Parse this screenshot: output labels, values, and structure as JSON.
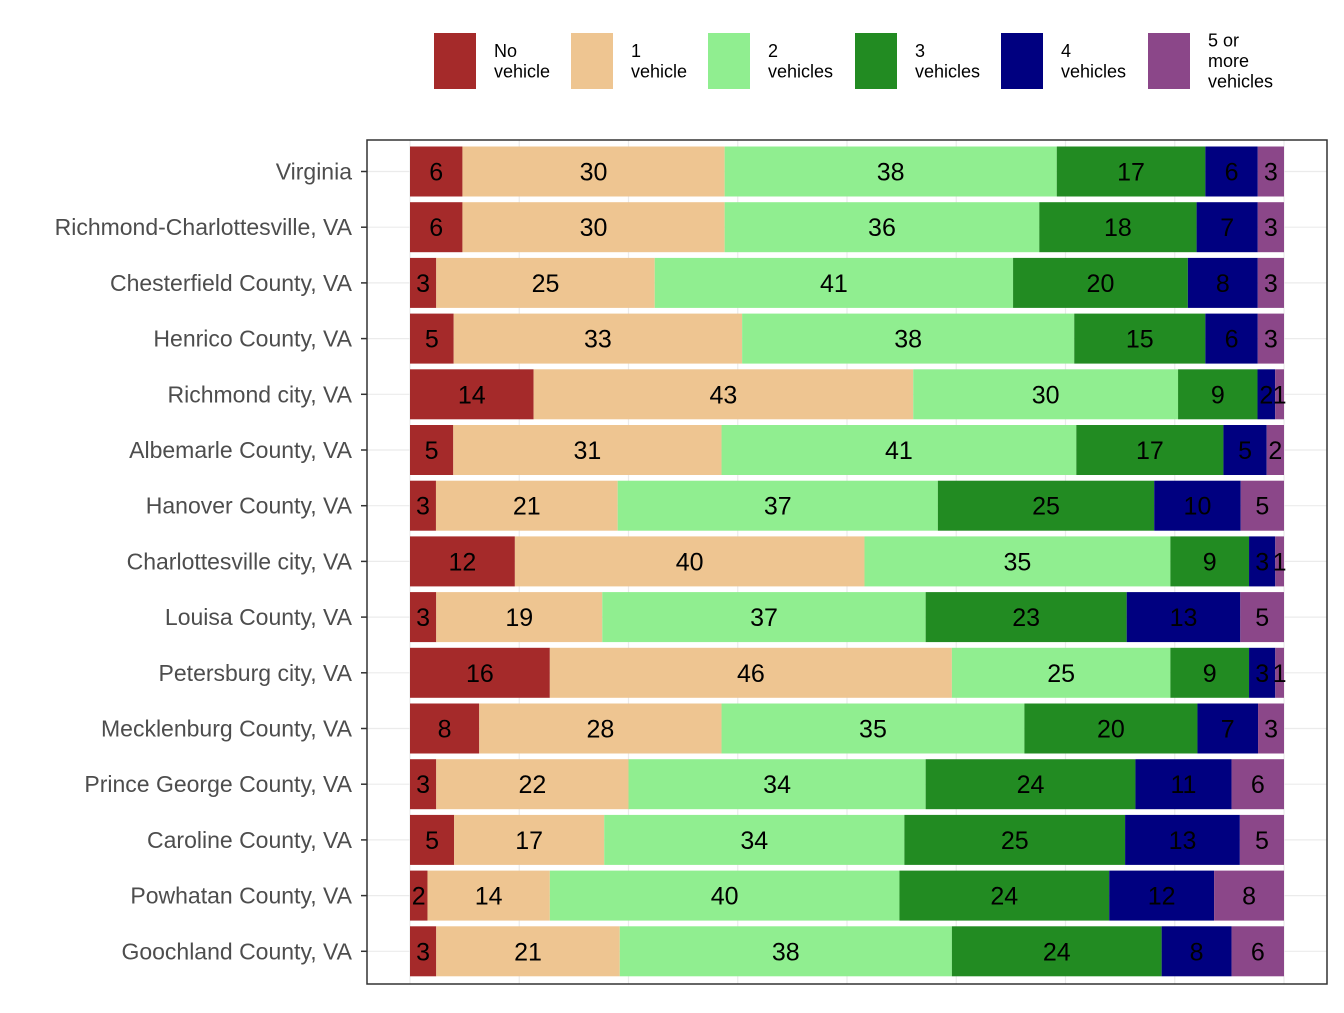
{
  "chart_data": {
    "type": "bar",
    "orientation": "horizontal",
    "stacked": true,
    "title": "",
    "xlabel": "",
    "ylabel": "",
    "legend_position": "top",
    "categories": [
      "Virginia",
      "Richmond-Charlottesville, VA",
      "Chesterfield County, VA",
      "Henrico County, VA",
      "Richmond city, VA",
      "Albemarle County, VA",
      "Hanover County, VA",
      "Charlottesville city, VA",
      "Louisa County, VA",
      "Petersburg city, VA",
      "Mecklenburg County, VA",
      "Prince George County, VA",
      "Caroline County, VA",
      "Powhatan County, VA",
      "Goochland County, VA"
    ],
    "series": [
      {
        "name": "No vehicle",
        "legend_lines": [
          "No",
          "vehicle"
        ],
        "color": "#A52A2A",
        "values": [
          6,
          6,
          3,
          5,
          14,
          5,
          3,
          12,
          3,
          16,
          8,
          3,
          5,
          2,
          3
        ]
      },
      {
        "name": "1 vehicle",
        "legend_lines": [
          "1",
          "vehicle"
        ],
        "color": "#EEC591",
        "values": [
          30,
          30,
          25,
          33,
          43,
          31,
          21,
          40,
          19,
          46,
          28,
          22,
          17,
          14,
          21
        ]
      },
      {
        "name": "2 vehicles",
        "legend_lines": [
          "2",
          "vehicles"
        ],
        "color": "#90EE90",
        "values": [
          38,
          36,
          41,
          38,
          30,
          41,
          37,
          35,
          37,
          25,
          35,
          34,
          34,
          40,
          38
        ]
      },
      {
        "name": "3 vehicles",
        "legend_lines": [
          "3",
          "vehicles"
        ],
        "color": "#228B22",
        "values": [
          17,
          18,
          20,
          15,
          9,
          17,
          25,
          9,
          23,
          9,
          20,
          24,
          25,
          24,
          24
        ]
      },
      {
        "name": "4 vehicles",
        "legend_lines": [
          "4",
          "vehicles"
        ],
        "color": "#000080",
        "values": [
          6,
          7,
          8,
          6,
          2,
          5,
          10,
          3,
          13,
          3,
          7,
          11,
          13,
          12,
          8
        ]
      },
      {
        "name": "5 or more vehicles",
        "legend_lines": [
          "5 or",
          "more",
          "vehicles"
        ],
        "color": "#8B4789",
        "values": [
          3,
          3,
          3,
          3,
          1,
          2,
          5,
          1,
          5,
          1,
          3,
          6,
          5,
          8,
          6
        ]
      }
    ]
  }
}
